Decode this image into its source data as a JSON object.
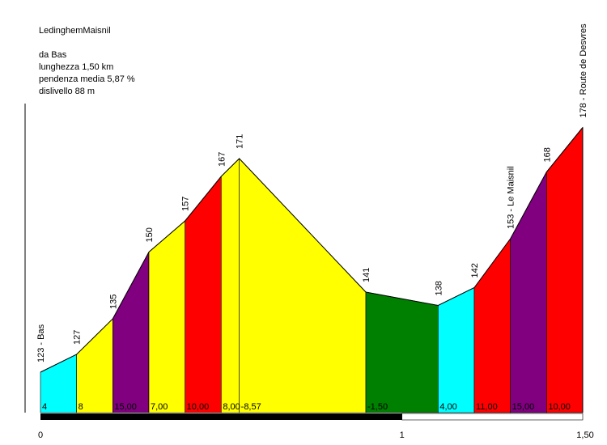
{
  "info": {
    "title": "LedinghemMaisnil",
    "from": "da Bas",
    "length": "lunghezza 1,50 km",
    "gradient": "pendenza media 5,87 %",
    "elevation_gain": "dislivello 88 m"
  },
  "chart_data": {
    "type": "area",
    "title": "LedinghemMaisnil",
    "xlabel": "",
    "ylabel": "",
    "x_unit": "km",
    "y_unit": "m",
    "xlim": [
      0,
      1.5
    ],
    "ylim": [
      113,
      178
    ],
    "grid": false,
    "x_ticks": [
      {
        "value": 0,
        "label": "0"
      },
      {
        "value": 1,
        "label": "1"
      },
      {
        "value": 1.5,
        "label": "1,50"
      }
    ],
    "points": [
      {
        "x": 0.0,
        "y": 123,
        "label": "123 - Bas"
      },
      {
        "x": 0.1,
        "y": 127,
        "label": "127"
      },
      {
        "x": 0.2,
        "y": 135,
        "label": "135"
      },
      {
        "x": 0.3,
        "y": 150,
        "label": "150"
      },
      {
        "x": 0.4,
        "y": 157,
        "label": "157"
      },
      {
        "x": 0.5,
        "y": 167,
        "label": "167"
      },
      {
        "x": 0.55,
        "y": 171,
        "label": "171"
      },
      {
        "x": 0.9,
        "y": 141,
        "label": "141"
      },
      {
        "x": 1.1,
        "y": 138,
        "label": "138"
      },
      {
        "x": 1.2,
        "y": 142,
        "label": "142"
      },
      {
        "x": 1.3,
        "y": 153,
        "label": "153 - Le Maisnil"
      },
      {
        "x": 1.4,
        "y": 168,
        "label": "168"
      },
      {
        "x": 1.5,
        "y": 178,
        "label": "178 - Route de Desvres"
      }
    ],
    "segments": [
      {
        "from": 0.0,
        "to": 0.1,
        "gradient": "4",
        "color": "#00ffff"
      },
      {
        "from": 0.1,
        "to": 0.2,
        "gradient": "8",
        "color": "#ffff00"
      },
      {
        "from": 0.2,
        "to": 0.3,
        "gradient": "15,00",
        "color": "#800080"
      },
      {
        "from": 0.3,
        "to": 0.4,
        "gradient": "7,00",
        "color": "#ffff00"
      },
      {
        "from": 0.4,
        "to": 0.5,
        "gradient": "10,00",
        "color": "#ff0000"
      },
      {
        "from": 0.5,
        "to": 0.55,
        "gradient": "8,00",
        "color": "#ffff00"
      },
      {
        "from": 0.55,
        "to": 0.9,
        "gradient": "-8,57",
        "color": "#ffff00"
      },
      {
        "from": 0.9,
        "to": 1.1,
        "gradient": "-1,50",
        "color": "#008000"
      },
      {
        "from": 1.1,
        "to": 1.2,
        "gradient": "4,00",
        "color": "#00ffff"
      },
      {
        "from": 1.2,
        "to": 1.3,
        "gradient": "11,00",
        "color": "#ff0000"
      },
      {
        "from": 1.3,
        "to": 1.4,
        "gradient": "15,00",
        "color": "#800080"
      },
      {
        "from": 1.4,
        "to": 1.5,
        "gradient": "10,00",
        "color": "#ff0000"
      }
    ],
    "distance_bar": {
      "filled_to_km": 1.0
    }
  }
}
